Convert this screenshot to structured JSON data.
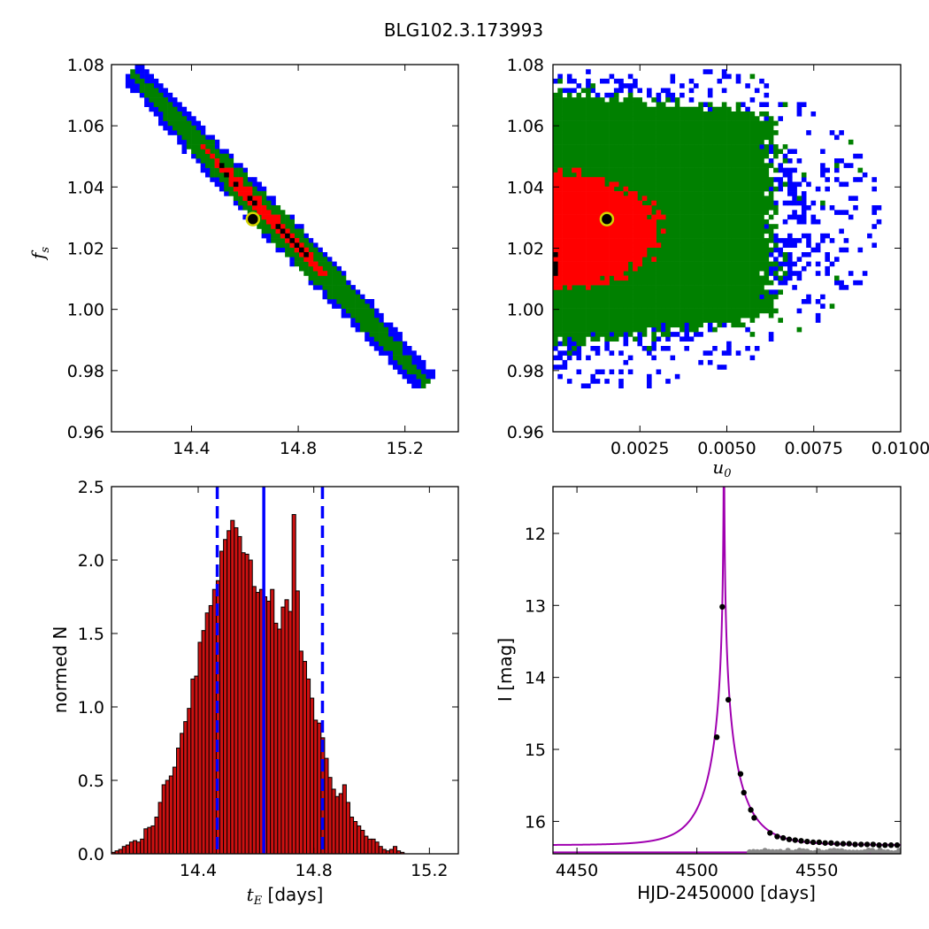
{
  "title": "BLG102.3.173993",
  "colors": {
    "red": "#ff0000",
    "green": "#008000",
    "blue": "#0000ff",
    "black": "#000000",
    "yellow": "#d4d400",
    "magenta": "#a000b0",
    "gray": "#888888",
    "bar_red": "#cc1111"
  },
  "chart_data": [
    {
      "type": "heatmap",
      "panel": "top-left",
      "xlabel": "",
      "ylabel_symbol": "f",
      "ylabel_sub": "s",
      "xlim": [
        14.1,
        15.4
      ],
      "ylim": [
        0.96,
        1.08
      ],
      "xticks": [
        "14.4",
        "14.8",
        "15.2"
      ],
      "xtick_values": [
        14.4,
        14.8,
        15.2
      ],
      "yticks": [
        "0.96",
        "0.98",
        "1.00",
        "1.02",
        "1.04",
        "1.06",
        "1.08"
      ],
      "ytick_values": [
        0.96,
        0.98,
        1.0,
        1.02,
        1.04,
        1.06,
        1.08
      ],
      "description_values": {
        "band_start": [
          14.18,
          1.077
        ],
        "band_end": [
          15.27,
          0.977
        ]
      },
      "best_fit": {
        "x": 14.63,
        "y": 1.0295
      },
      "levels": [
        "blue",
        "green",
        "red",
        "black"
      ]
    },
    {
      "type": "heatmap",
      "panel": "top-right",
      "xlabel_symbol": "u",
      "xlabel_sub": "0",
      "xlim": [
        0.0,
        0.01
      ],
      "ylim": [
        0.96,
        1.08
      ],
      "xticks": [
        "0.0025",
        "0.0050",
        "0.0075",
        "0.0100"
      ],
      "xtick_values": [
        0.0025,
        0.005,
        0.0075,
        0.01
      ],
      "yticks": [
        "0.96",
        "0.98",
        "1.00",
        "1.02",
        "1.04",
        "1.06",
        "1.08"
      ],
      "ytick_values": [
        0.96,
        0.98,
        1.0,
        1.02,
        1.04,
        1.06,
        1.08
      ],
      "best_fit": {
        "x": 0.00155,
        "y": 1.0295
      },
      "levels": [
        "blue",
        "green",
        "red",
        "black"
      ]
    },
    {
      "type": "bar",
      "panel": "bottom-left",
      "xlabel_symbol": "t",
      "xlabel_sub": "E",
      "xlabel_rest": " [days]",
      "ylabel": "normed N",
      "xlim": [
        14.1,
        15.3
      ],
      "ylim": [
        0.0,
        2.5
      ],
      "xticks": [
        "14.4",
        "14.8",
        "15.2"
      ],
      "xtick_values": [
        14.4,
        14.8,
        15.2
      ],
      "yticks": [
        "0.0",
        "0.5",
        "1.0",
        "1.5",
        "2.0",
        "2.5"
      ],
      "ytick_values": [
        0.0,
        0.5,
        1.0,
        1.5,
        2.0,
        2.5
      ],
      "bin_start": 14.1,
      "bin_width": 0.0125,
      "values": [
        0.01,
        0.02,
        0.03,
        0.05,
        0.06,
        0.08,
        0.09,
        0.08,
        0.1,
        0.17,
        0.18,
        0.19,
        0.25,
        0.35,
        0.47,
        0.5,
        0.53,
        0.59,
        0.72,
        0.82,
        0.9,
        0.99,
        1.19,
        1.21,
        1.44,
        1.52,
        1.64,
        1.69,
        1.8,
        1.86,
        2.06,
        2.14,
        2.2,
        2.27,
        2.22,
        2.16,
        2.05,
        2.04,
        2.0,
        1.82,
        1.78,
        1.8,
        1.75,
        1.72,
        1.8,
        1.57,
        1.53,
        1.68,
        1.73,
        1.65,
        2.31,
        1.79,
        1.38,
        1.31,
        1.19,
        1.06,
        0.91,
        0.89,
        0.79,
        0.65,
        0.52,
        0.44,
        0.39,
        0.41,
        0.47,
        0.35,
        0.25,
        0.22,
        0.19,
        0.16,
        0.12,
        0.1,
        0.1,
        0.08,
        0.05,
        0.03,
        0.02,
        0.03,
        0.05,
        0.02,
        0.01
      ],
      "lines": {
        "median": 14.627,
        "low": 14.466,
        "high": 14.83
      }
    },
    {
      "type": "line",
      "panel": "bottom-right",
      "xlabel": "HJD-2450000 [days]",
      "ylabel": "I [mag]",
      "xlim": [
        4440,
        4585
      ],
      "ylim": [
        16.45,
        11.35
      ],
      "xticks": [
        "4450",
        "4500",
        "4550"
      ],
      "xtick_values": [
        4450,
        4500,
        4550
      ],
      "yticks": [
        "12",
        "13",
        "14",
        "15",
        "16"
      ],
      "ytick_values": [
        12,
        13,
        14,
        15,
        16
      ],
      "model": {
        "t0": 4511.3,
        "tE": 14.63,
        "u0": 0.00155,
        "fs": 1.0295,
        "Ibase": 16.33
      },
      "points": [
        {
          "x": 4508.3,
          "y": 14.83
        },
        {
          "x": 4510.6,
          "y": 13.02
        },
        {
          "x": 4513.1,
          "y": 14.31
        },
        {
          "x": 4518.2,
          "y": 15.34
        },
        {
          "x": 4519.6,
          "y": 15.6
        },
        {
          "x": 4522.5,
          "y": 15.84
        },
        {
          "x": 4523.9,
          "y": 15.95
        },
        {
          "x": 4530.5,
          "y": 16.16
        },
        {
          "x": 4533.5,
          "y": 16.21
        },
        {
          "x": 4536.0,
          "y": 16.23
        },
        {
          "x": 4538.5,
          "y": 16.25
        },
        {
          "x": 4541.0,
          "y": 16.26
        },
        {
          "x": 4543.5,
          "y": 16.27
        },
        {
          "x": 4546.0,
          "y": 16.28
        },
        {
          "x": 4548.5,
          "y": 16.29
        },
        {
          "x": 4551.0,
          "y": 16.29
        },
        {
          "x": 4553.5,
          "y": 16.3
        },
        {
          "x": 4556.0,
          "y": 16.3
        },
        {
          "x": 4558.5,
          "y": 16.31
        },
        {
          "x": 4561.0,
          "y": 16.31
        },
        {
          "x": 4563.5,
          "y": 16.31
        },
        {
          "x": 4566.0,
          "y": 16.32
        },
        {
          "x": 4568.5,
          "y": 16.32
        },
        {
          "x": 4571.0,
          "y": 16.32
        },
        {
          "x": 4573.5,
          "y": 16.32
        },
        {
          "x": 4576.0,
          "y": 16.33
        },
        {
          "x": 4578.5,
          "y": 16.33
        },
        {
          "x": 4581.0,
          "y": 16.33
        },
        {
          "x": 4583.5,
          "y": 16.33
        }
      ],
      "gray_points_y": 16.42
    }
  ]
}
